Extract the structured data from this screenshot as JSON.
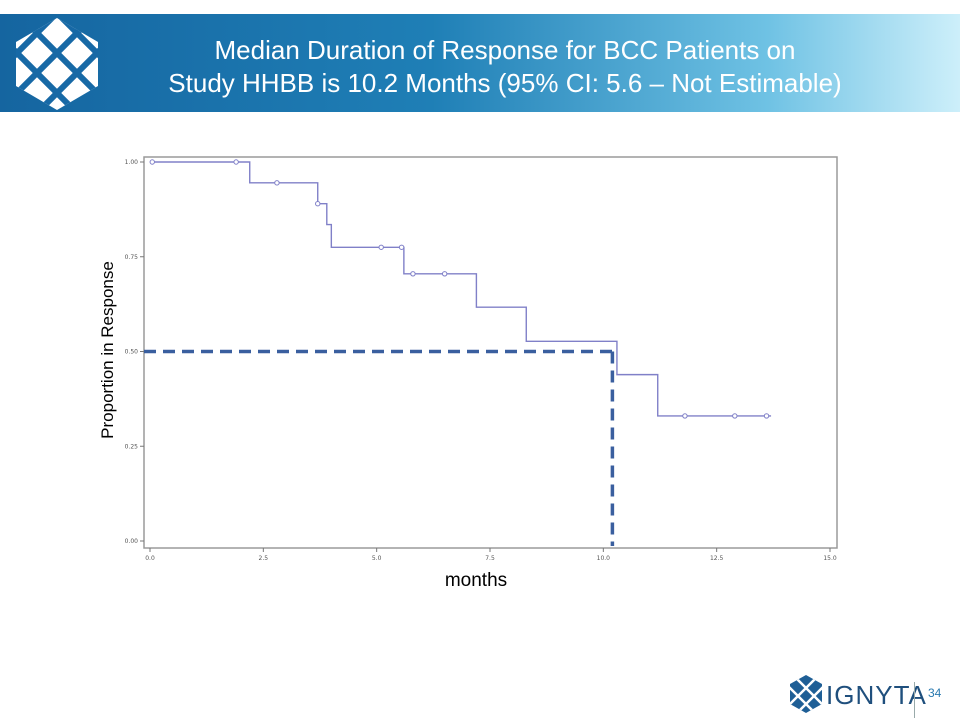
{
  "header": {
    "title_line1": "Median Duration of Response for BCC Patients on",
    "title_line2": "Study HHBB is 10.2 Months (95% CI: 5.6 – Not Estimable)",
    "logo_icon": "ignyta-lattice-icon"
  },
  "footer": {
    "brand": "IGNYTA",
    "page_number": "34"
  },
  "colors": {
    "header_start": "#1565a0",
    "header_end": "#cdeffa",
    "curve": "#8080c8",
    "dash": "#3a5f9f"
  },
  "chart_data": {
    "type": "line",
    "ylabel": "Proportion in Response",
    "xlabel": "months",
    "xlim": [
      0,
      15
    ],
    "ylim": [
      0,
      1
    ],
    "xticks": [
      "0.0",
      "2.5",
      "5.0",
      "7.5",
      "10.0",
      "12.5",
      "15.0"
    ],
    "yticks": [
      "0.00",
      "0.25",
      "0.50",
      "0.75",
      "1.00"
    ],
    "step_curve": {
      "x": [
        0,
        2.2,
        3.7,
        3.9,
        4.0,
        5.6,
        7.2,
        8.3,
        10.3,
        11.2,
        13.7
      ],
      "y": [
        1.0,
        0.945,
        0.89,
        0.835,
        0.775,
        0.705,
        0.617,
        0.527,
        0.439,
        0.33,
        0.33
      ]
    },
    "censored": {
      "x": [
        0.05,
        1.9,
        2.8,
        3.7,
        5.1,
        5.55,
        5.8,
        6.5,
        11.8,
        12.9,
        13.6
      ],
      "y": [
        1.0,
        1.0,
        0.945,
        0.89,
        0.775,
        0.775,
        0.705,
        0.705,
        0.33,
        0.33,
        0.33
      ]
    },
    "median_line": {
      "x": 10.2,
      "y": 0.5
    }
  }
}
